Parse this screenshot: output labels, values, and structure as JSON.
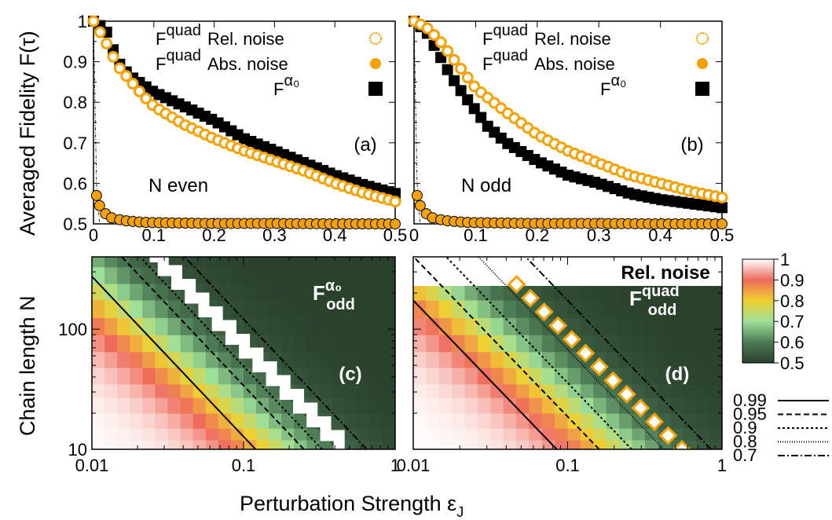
{
  "figure": {
    "ylabel_top": "Averaged Fidelity F(τ)",
    "ylabel_bottom": "Chain length N",
    "xlabel": "Perturbation Strength ε",
    "xlabel_sub": "J"
  },
  "colors": {
    "orange": "#f5a100",
    "black": "#000000",
    "purple": "#9400d3",
    "dark_green": "#2f4a32"
  },
  "chart_data": [
    {
      "panel_label": "(a)",
      "type": "scatter",
      "annotation": "N even",
      "xlim": [
        0,
        0.5
      ],
      "ylim": [
        0.5,
        1
      ],
      "x_ticks": [
        "0",
        "0.1",
        "0.2",
        "0.3",
        "0.4",
        "0.5"
      ],
      "y_ticks": [
        "0.5",
        "0.6",
        "0.7",
        "0.8",
        "0.9",
        "1"
      ],
      "legend": [
        {
          "sym": "F",
          "sup": "quad",
          "text": "Rel. noise",
          "marker": "open-orange-circle"
        },
        {
          "sym": "F",
          "sup": "quad",
          "text": "Abs. noise",
          "marker": "filled-orange-circle"
        },
        {
          "sym": "F",
          "sup": "α₀",
          "text": "",
          "marker": "black-square"
        }
      ],
      "series": [
        {
          "name": "Fquad Rel. noise",
          "x": [
            0,
            0.02,
            0.04,
            0.06,
            0.08,
            0.1,
            0.15,
            0.2,
            0.25,
            0.3,
            0.35,
            0.4,
            0.45,
            0.5
          ],
          "y": [
            1.0,
            0.95,
            0.89,
            0.855,
            0.82,
            0.79,
            0.745,
            0.71,
            0.68,
            0.655,
            0.63,
            0.6,
            0.575,
            0.555
          ]
        },
        {
          "name": "Fquad Abs. noise",
          "x": [
            0,
            0.005,
            0.01,
            0.02,
            0.03,
            0.05,
            0.08,
            0.1,
            0.15,
            0.2,
            0.3,
            0.4,
            0.5
          ],
          "y": [
            1.0,
            0.57,
            0.545,
            0.525,
            0.515,
            0.508,
            0.504,
            0.503,
            0.502,
            0.501,
            0.501,
            0.5,
            0.5
          ]
        },
        {
          "name": "Fα0",
          "x": [
            0,
            0.02,
            0.04,
            0.06,
            0.08,
            0.1,
            0.15,
            0.2,
            0.25,
            0.3,
            0.35,
            0.4,
            0.45,
            0.5
          ],
          "y": [
            1.0,
            0.98,
            0.9,
            0.865,
            0.845,
            0.825,
            0.79,
            0.755,
            0.71,
            0.68,
            0.65,
            0.62,
            0.595,
            0.575
          ]
        }
      ]
    },
    {
      "panel_label": "(b)",
      "type": "scatter",
      "annotation": "N odd",
      "xlim": [
        0,
        0.5
      ],
      "ylim": [
        0.5,
        1
      ],
      "x_ticks": [
        "0",
        "0.1",
        "0.2",
        "0.3",
        "0.4",
        "0.5"
      ],
      "legend": [
        {
          "sym": "F",
          "sup": "quad",
          "text": "Rel. noise",
          "marker": "open-orange-circle"
        },
        {
          "sym": "F",
          "sup": "quad",
          "text": "Abs. noise",
          "marker": "filled-orange-circle"
        },
        {
          "sym": "F",
          "sup": "α₀",
          "text": "",
          "marker": "black-square"
        }
      ],
      "series": [
        {
          "name": "Fquad Rel. noise",
          "x": [
            0,
            0.02,
            0.04,
            0.06,
            0.08,
            0.1,
            0.15,
            0.2,
            0.25,
            0.3,
            0.35,
            0.4,
            0.45,
            0.5
          ],
          "y": [
            1.0,
            0.985,
            0.955,
            0.915,
            0.875,
            0.835,
            0.775,
            0.72,
            0.68,
            0.65,
            0.62,
            0.6,
            0.58,
            0.565
          ]
        },
        {
          "name": "Fquad Abs. noise",
          "x": [
            0,
            0.005,
            0.01,
            0.02,
            0.03,
            0.05,
            0.08,
            0.1,
            0.15,
            0.2,
            0.3,
            0.4,
            0.5
          ],
          "y": [
            1.0,
            0.57,
            0.545,
            0.525,
            0.515,
            0.508,
            0.504,
            0.503,
            0.502,
            0.501,
            0.501,
            0.5,
            0.5
          ]
        },
        {
          "name": "Fα0",
          "x": [
            0,
            0.02,
            0.04,
            0.06,
            0.08,
            0.1,
            0.12,
            0.15,
            0.2,
            0.25,
            0.3,
            0.35,
            0.4,
            0.45,
            0.5
          ],
          "y": [
            1.0,
            0.975,
            0.92,
            0.865,
            0.82,
            0.78,
            0.74,
            0.7,
            0.655,
            0.62,
            0.6,
            0.575,
            0.56,
            0.55,
            0.54
          ]
        }
      ]
    },
    {
      "panel_label": "(c)",
      "type": "heatmap",
      "label_sym": "F",
      "label_sup": "α₀",
      "label_sub": "odd",
      "xlim": [
        0.01,
        1
      ],
      "ylim": [
        10,
        400
      ],
      "xscale": "log",
      "yscale": "log",
      "x_ticks": [
        "0.01",
        "0.1",
        "1"
      ],
      "y_ticks": [
        "10",
        "100"
      ],
      "contour_levels": [
        0.99,
        0.95,
        0.9,
        0.8,
        0.7
      ],
      "contour_x_at_N10": [
        0.12,
        0.25,
        0.33,
        0.42,
        0.65
      ],
      "marked_band_x_at_N10": 0.47
    },
    {
      "panel_label": "(d)",
      "type": "heatmap",
      "label_top": "Rel. noise",
      "label_sym": "F",
      "label_sup": "quad",
      "label_sub": "odd",
      "xlim": [
        0.01,
        1
      ],
      "ylim": [
        10,
        400
      ],
      "xscale": "log",
      "yscale": "log",
      "x_ticks": [
        "0.01",
        "0.1",
        "1"
      ],
      "contour_levels": [
        0.99,
        0.95,
        0.9,
        0.8,
        0.7
      ],
      "contour_x_at_N10": [
        0.085,
        0.16,
        0.26,
        0.42,
        0.85
      ],
      "marked_band_x_at_N10": 0.55
    }
  ],
  "colorbar": {
    "ticks": [
      "1",
      "0.9",
      "0.8",
      "0.7",
      "0.6",
      "0.5"
    ],
    "stops": [
      "#ffffff",
      "#ee6b5b",
      "#f0d030",
      "#9ee09a",
      "#4d7b55",
      "#2a412c"
    ]
  },
  "contour_legend": [
    {
      "label": "0.99",
      "dash": ""
    },
    {
      "label": "0.95",
      "dash": "7,4"
    },
    {
      "label": "0.9",
      "dash": "3,3"
    },
    {
      "label": "0.8",
      "dash": "1,2"
    },
    {
      "label": "0.7",
      "dash": "9,3,2,3"
    }
  ]
}
